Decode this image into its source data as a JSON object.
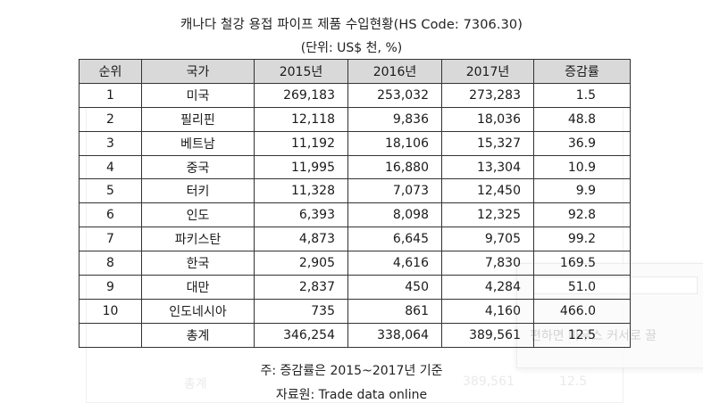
{
  "title": "캐나다 철강 용접 파이프 제품 수입현황(HS Code: 7306.30)",
  "unit_note": "(단위: US$ 천, %)",
  "table": {
    "headers": [
      "순위",
      "국가",
      "2015년",
      "2016년",
      "2017년",
      "증감률"
    ],
    "rows": [
      {
        "rank": "1",
        "country": "미국",
        "y2015": "269,183",
        "y2016": "253,032",
        "y2017": "273,283",
        "change": "1.5"
      },
      {
        "rank": "2",
        "country": "필리핀",
        "y2015": "12,118",
        "y2016": "9,836",
        "y2017": "18,036",
        "change": "48.8"
      },
      {
        "rank": "3",
        "country": "베트남",
        "y2015": "11,192",
        "y2016": "18,106",
        "y2017": "15,327",
        "change": "36.9"
      },
      {
        "rank": "4",
        "country": "중국",
        "y2015": "11,995",
        "y2016": "16,880",
        "y2017": "13,304",
        "change": "10.9"
      },
      {
        "rank": "5",
        "country": "터키",
        "y2015": "11,328",
        "y2016": "7,073",
        "y2017": "12,450",
        "change": "9.9"
      },
      {
        "rank": "6",
        "country": "인도",
        "y2015": "6,393",
        "y2016": "8,098",
        "y2017": "12,325",
        "change": "92.8"
      },
      {
        "rank": "7",
        "country": "파키스탄",
        "y2015": "4,873",
        "y2016": "6,645",
        "y2017": "9,705",
        "change": "99.2"
      },
      {
        "rank": "8",
        "country": "한국",
        "y2015": "2,905",
        "y2016": "4,616",
        "y2017": "7,830",
        "change": "169.5"
      },
      {
        "rank": "9",
        "country": "대만",
        "y2015": "2,837",
        "y2016": "450",
        "y2017": "4,284",
        "change": "51.0"
      },
      {
        "rank": "10",
        "country": "인도네시아",
        "y2015": "735",
        "y2016": "861",
        "y2017": "4,160",
        "change": "466.0"
      }
    ],
    "total": {
      "rank": "",
      "country": "총계",
      "y2015": "346,254",
      "y2016": "338,064",
      "y2017": "389,561",
      "change": "12.5"
    }
  },
  "footnote": "주: 증감률은 2015~2017년 기준",
  "source": "자료원: Trade data online",
  "ghost": {
    "popup_text": "편하면 마우스 커서로 끌",
    "total_label": "총계",
    "total_2017": "389,561",
    "total_change": "12.5"
  }
}
